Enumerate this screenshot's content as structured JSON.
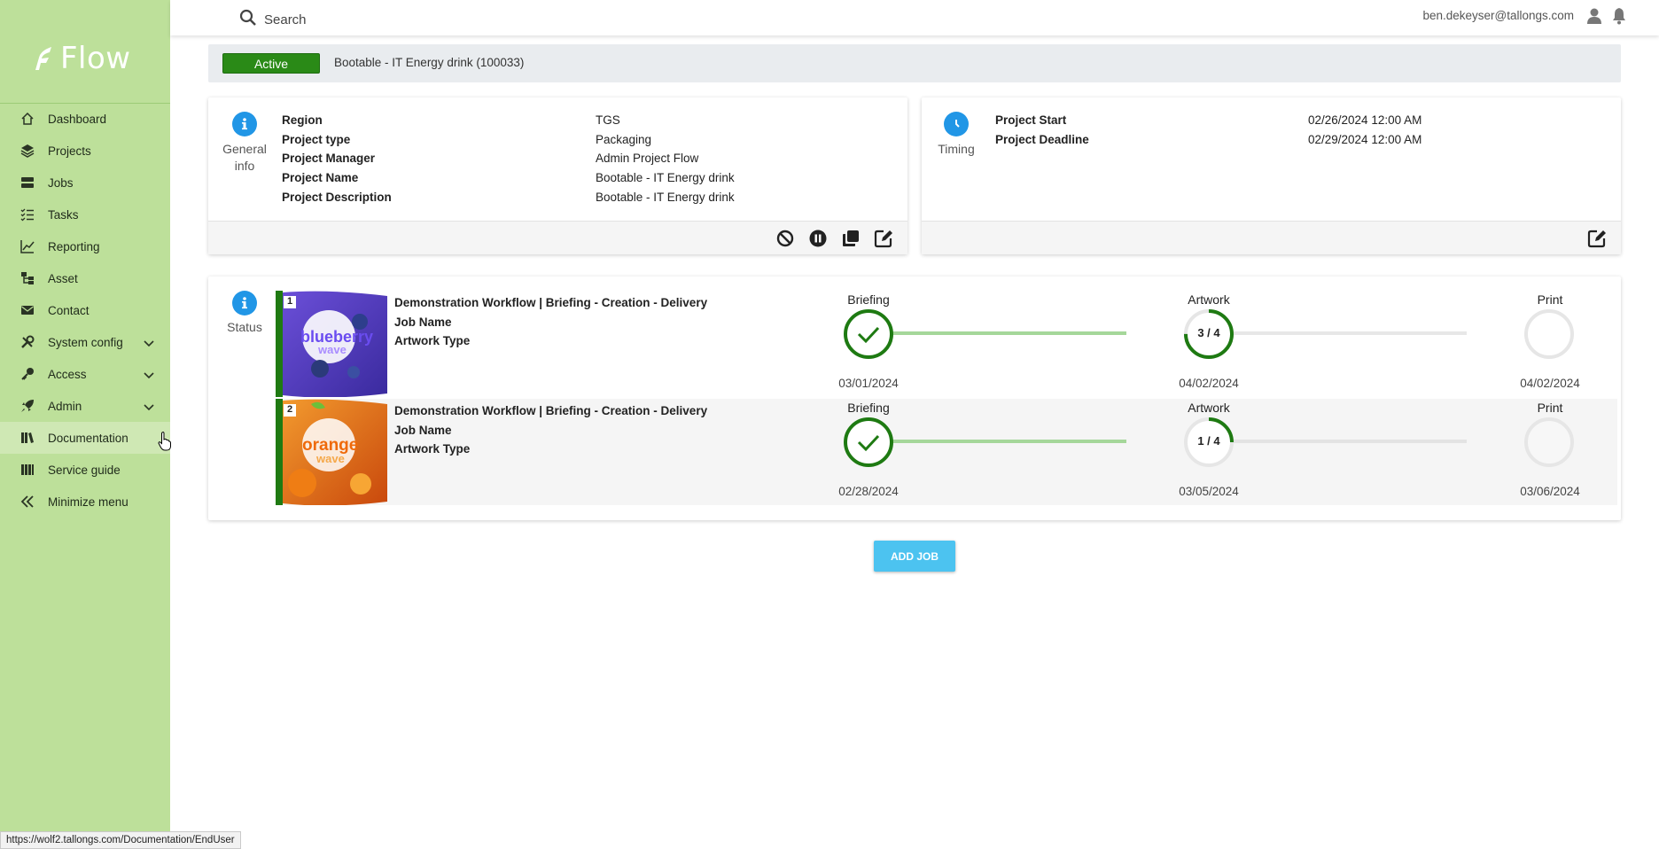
{
  "app": {
    "logo_text": "Flow"
  },
  "sidebar": {
    "items": [
      {
        "label": "Dashboard",
        "icon": "home-icon"
      },
      {
        "label": "Projects",
        "icon": "layers-icon"
      },
      {
        "label": "Jobs",
        "icon": "jobs-icon"
      },
      {
        "label": "Tasks",
        "icon": "checklist-icon"
      },
      {
        "label": "Reporting",
        "icon": "chart-line-icon"
      },
      {
        "label": "Asset",
        "icon": "asset-tree-icon"
      },
      {
        "label": "Contact",
        "icon": "envelope-icon"
      },
      {
        "label": "System config",
        "icon": "tools-icon"
      },
      {
        "label": "Access",
        "icon": "key-icon"
      },
      {
        "label": "Admin",
        "icon": "rocket-icon"
      },
      {
        "label": "Documentation",
        "icon": "book-icon"
      },
      {
        "label": "Service guide",
        "icon": "guide-icon"
      },
      {
        "label": "Minimize menu",
        "icon": "double-chevron-left-icon"
      }
    ]
  },
  "topbar": {
    "search_placeholder": "Search",
    "user_email": "ben.dekeyser@tallongs.com"
  },
  "project": {
    "status": "Active",
    "title": "Bootable - IT Energy drink (100033)",
    "status_color": "#2a8a17"
  },
  "general_info": {
    "label_line1": "General",
    "label_line2": "info",
    "rows": [
      {
        "label": "Region",
        "value": "TGS"
      },
      {
        "label": "Project type",
        "value": "Packaging"
      },
      {
        "label": "Project Manager",
        "value": "Admin Project Flow"
      },
      {
        "label": "Project Name",
        "value": "Bootable - IT Energy drink"
      },
      {
        "label": "Project Description",
        "value": "Bootable - IT Energy drink"
      }
    ]
  },
  "timing": {
    "label": "Timing",
    "rows": [
      {
        "label": "Project Start",
        "value": "02/26/2024 12:00 AM"
      },
      {
        "label": "Project Deadline",
        "value": "02/29/2024 12:00 AM"
      }
    ]
  },
  "status_card": {
    "label": "Status",
    "jobs": [
      {
        "number": "1",
        "thumb_text": "blueberry",
        "thumb_text2": "wave",
        "workflow": "Demonstration Workflow | Briefing - Creation - Delivery",
        "job_name_label": "Job Name",
        "artwork_type_label": "Artwork Type",
        "stages": [
          {
            "name": "Briefing",
            "date": "03/01/2024",
            "progress": "",
            "done": true
          },
          {
            "name": "Artwork",
            "date": "04/02/2024",
            "progress": "3 / 4",
            "done_fraction": 0.75
          },
          {
            "name": "Print",
            "date": "04/02/2024",
            "progress": "",
            "done_fraction": 0
          }
        ]
      },
      {
        "number": "2",
        "thumb_text": "orange",
        "thumb_text2": "wave",
        "workflow": "Demonstration Workflow | Briefing - Creation - Delivery",
        "job_name_label": "Job Name",
        "artwork_type_label": "Artwork Type",
        "stages": [
          {
            "name": "Briefing",
            "date": "02/28/2024",
            "progress": "",
            "done": true
          },
          {
            "name": "Artwork",
            "date": "03/05/2024",
            "progress": "1 / 4",
            "done_fraction": 0.25
          },
          {
            "name": "Print",
            "date": "03/06/2024",
            "progress": "",
            "done_fraction": 0
          }
        ]
      }
    ]
  },
  "add_job_label": "ADD JOB",
  "status_url": "https://wolf2.tallongs.com/Documentation/EndUser"
}
